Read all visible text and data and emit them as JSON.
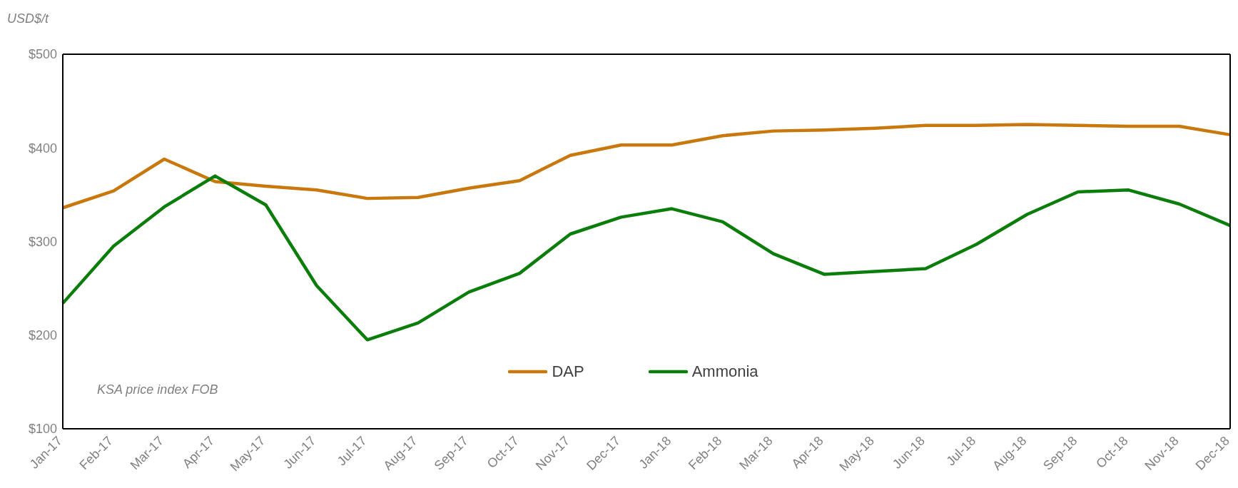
{
  "chart_data": {
    "type": "line",
    "ylabel": "USD$/t",
    "annotations": [
      "KSA price index FOB"
    ],
    "categories": [
      "Jan-17",
      "Feb-17",
      "Mar-17",
      "Apr-17",
      "May-17",
      "Jun-17",
      "Jul-17",
      "Aug-17",
      "Sep-17",
      "Oct-17",
      "Nov-17",
      "Dec-17",
      "Jan-18",
      "Feb-18",
      "Mar-18",
      "Apr-18",
      "May-18",
      "Jun-18",
      "Jul-18",
      "Aug-18",
      "Sep-18",
      "Oct-18",
      "Nov-18",
      "Dec-18"
    ],
    "series": [
      {
        "name": "DAP",
        "color": "#c8780c",
        "values": [
          336,
          354,
          388,
          364,
          359,
          355,
          346,
          347,
          357,
          365,
          392,
          403,
          403,
          413,
          418,
          419,
          421,
          424,
          424,
          425,
          424,
          423,
          423,
          414
        ]
      },
      {
        "name": "Ammonia",
        "color": "#0a7d0a",
        "values": [
          234,
          295,
          337,
          370,
          339,
          253,
          195,
          213,
          246,
          266,
          308,
          326,
          335,
          321,
          287,
          265,
          268,
          271,
          297,
          329,
          353,
          355,
          340,
          317
        ]
      }
    ],
    "ylim": [
      100,
      500
    ],
    "yticks": [
      {
        "value": 100,
        "label": "$100"
      },
      {
        "value": 200,
        "label": "$200"
      },
      {
        "value": 300,
        "label": "$300"
      },
      {
        "value": 400,
        "label": "$400"
      },
      {
        "value": 500,
        "label": "$500"
      }
    ],
    "grid": false,
    "legend": "bottom",
    "marker": "none",
    "line_style": "solid"
  }
}
